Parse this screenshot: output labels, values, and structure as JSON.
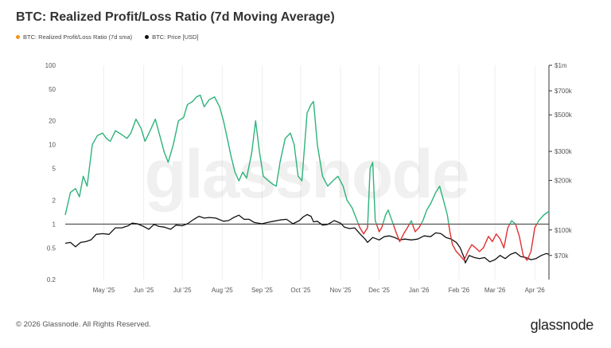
{
  "title": "BTC: Realized Profit/Loss Ratio (7d Moving Average)",
  "legend": [
    {
      "label": "BTC: Realized Profit/Loss Ratio (7d sma)",
      "color": "#f7931a"
    },
    {
      "label": "BTC: Price [USD]",
      "color": "#111111"
    }
  ],
  "watermark": "glassnode",
  "footer": {
    "copyright": "© 2026 Glassnode. All Rights Reserved.",
    "logo": "glassnode"
  },
  "colors": {
    "profit": "#2db37a",
    "loss": "#e03131",
    "price": "#111111",
    "grid": "#eeeeee",
    "axis": "#333333"
  },
  "chart_data": {
    "type": "line",
    "y_scale": "log",
    "grid": "vertical",
    "legend_position": "top-left",
    "x": {
      "start": "2025-04-01",
      "end": "2026-04-12",
      "tick_labels": [
        "May '25",
        "Jun '25",
        "Jul '25",
        "Aug '25",
        "Sep '25",
        "Oct '25",
        "Nov '25",
        "Dec '25",
        "Jan '26",
        "Feb '26",
        "Mar '26",
        "Apr '26"
      ],
      "tick_dates": [
        "2025-05-01",
        "2025-06-01",
        "2025-07-01",
        "2025-08-01",
        "2025-09-01",
        "2025-10-01",
        "2025-11-01",
        "2025-12-01",
        "2026-01-01",
        "2026-02-01",
        "2026-03-01",
        "2026-04-01"
      ]
    },
    "y_left": {
      "range": [
        0.2,
        100
      ],
      "tick_values": [
        100,
        50,
        20,
        10,
        5,
        2,
        1,
        0.5,
        0.2
      ],
      "tick_labels": [
        "100",
        "50",
        "20",
        "10",
        "5",
        "2",
        "1",
        "0.5",
        "0.2"
      ]
    },
    "y_right": {
      "range": [
        50000,
        1000000
      ],
      "tick_values": [
        1000000,
        700000,
        500000,
        300000,
        200000,
        100000,
        70000
      ],
      "tick_labels": [
        "$1m",
        "$700k",
        "$500k",
        "$300k",
        "$200k",
        "$100k",
        "$70k"
      ]
    },
    "reference_line": 1,
    "series": [
      {
        "name": "BTC: Realized Profit/Loss Ratio (7d sma)",
        "axis": "left",
        "style": "colored by threshold 1 (above: profit color, below: loss color)",
        "points": [
          [
            "2025-04-01",
            1.3
          ],
          [
            "2025-04-05",
            2.5
          ],
          [
            "2025-04-09",
            2.8
          ],
          [
            "2025-04-12",
            2.2
          ],
          [
            "2025-04-15",
            4
          ],
          [
            "2025-04-18",
            3
          ],
          [
            "2025-04-22",
            10
          ],
          [
            "2025-04-26",
            13
          ],
          [
            "2025-04-30",
            14
          ],
          [
            "2025-05-03",
            12
          ],
          [
            "2025-05-06",
            11
          ],
          [
            "2025-05-10",
            15
          ],
          [
            "2025-05-13",
            14
          ],
          [
            "2025-05-16",
            13
          ],
          [
            "2025-05-19",
            12
          ],
          [
            "2025-05-22",
            14
          ],
          [
            "2025-05-26",
            21
          ],
          [
            "2025-05-30",
            16
          ],
          [
            "2025-06-02",
            11
          ],
          [
            "2025-06-06",
            15
          ],
          [
            "2025-06-10",
            21
          ],
          [
            "2025-06-13",
            14
          ],
          [
            "2025-06-17",
            8
          ],
          [
            "2025-06-20",
            6
          ],
          [
            "2025-06-24",
            10
          ],
          [
            "2025-06-28",
            20
          ],
          [
            "2025-07-02",
            22
          ],
          [
            "2025-07-05",
            32
          ],
          [
            "2025-07-09",
            35
          ],
          [
            "2025-07-12",
            40
          ],
          [
            "2025-07-15",
            42
          ],
          [
            "2025-07-18",
            30
          ],
          [
            "2025-07-22",
            37
          ],
          [
            "2025-07-26",
            40
          ],
          [
            "2025-07-30",
            30
          ],
          [
            "2025-08-02",
            20
          ],
          [
            "2025-08-05",
            12
          ],
          [
            "2025-08-08",
            7
          ],
          [
            "2025-08-11",
            4.5
          ],
          [
            "2025-08-14",
            3.5
          ],
          [
            "2025-08-17",
            4.5
          ],
          [
            "2025-08-20",
            3.8
          ],
          [
            "2025-08-24",
            8
          ],
          [
            "2025-08-27",
            20
          ],
          [
            "2025-08-30",
            8
          ],
          [
            "2025-09-02",
            4
          ],
          [
            "2025-09-06",
            3.5
          ],
          [
            "2025-09-09",
            3.2
          ],
          [
            "2025-09-12",
            3
          ],
          [
            "2025-09-15",
            6
          ],
          [
            "2025-09-19",
            12
          ],
          [
            "2025-09-23",
            14
          ],
          [
            "2025-09-26",
            10
          ],
          [
            "2025-09-29",
            4
          ],
          [
            "2025-10-02",
            3.5
          ],
          [
            "2025-10-06",
            25
          ],
          [
            "2025-10-09",
            32
          ],
          [
            "2025-10-11",
            35
          ],
          [
            "2025-10-14",
            10
          ],
          [
            "2025-10-18",
            4
          ],
          [
            "2025-10-22",
            3
          ],
          [
            "2025-10-26",
            3.5
          ],
          [
            "2025-10-30",
            4
          ],
          [
            "2025-11-03",
            3
          ],
          [
            "2025-11-06",
            2
          ],
          [
            "2025-11-10",
            1.6
          ],
          [
            "2025-11-13",
            1.2
          ],
          [
            "2025-11-16",
            0.9
          ],
          [
            "2025-11-19",
            0.75
          ],
          [
            "2025-11-22",
            0.9
          ],
          [
            "2025-11-24",
            5
          ],
          [
            "2025-11-26",
            6
          ],
          [
            "2025-11-28",
            1.1
          ],
          [
            "2025-12-01",
            0.8
          ],
          [
            "2025-12-03",
            0.9
          ],
          [
            "2025-12-06",
            1.3
          ],
          [
            "2025-12-08",
            1.5
          ],
          [
            "2025-12-11",
            1.1
          ],
          [
            "2025-12-14",
            0.8
          ],
          [
            "2025-12-17",
            0.6
          ],
          [
            "2025-12-20",
            0.75
          ],
          [
            "2025-12-23",
            0.9
          ],
          [
            "2025-12-26",
            1.1
          ],
          [
            "2025-12-29",
            0.8
          ],
          [
            "2026-01-01",
            0.9
          ],
          [
            "2026-01-04",
            1.1
          ],
          [
            "2026-01-07",
            1.5
          ],
          [
            "2026-01-10",
            1.8
          ],
          [
            "2026-01-14",
            2.5
          ],
          [
            "2026-01-17",
            3
          ],
          [
            "2026-01-20",
            2
          ],
          [
            "2026-01-23",
            1.3
          ],
          [
            "2026-01-25",
            0.8
          ],
          [
            "2026-01-27",
            0.55
          ],
          [
            "2026-01-30",
            0.45
          ],
          [
            "2026-02-02",
            0.4
          ],
          [
            "2026-02-05",
            0.35
          ],
          [
            "2026-02-08",
            0.45
          ],
          [
            "2026-02-11",
            0.55
          ],
          [
            "2026-02-14",
            0.5
          ],
          [
            "2026-02-17",
            0.45
          ],
          [
            "2026-02-20",
            0.5
          ],
          [
            "2026-02-24",
            0.7
          ],
          [
            "2026-02-27",
            0.6
          ],
          [
            "2026-03-02",
            0.75
          ],
          [
            "2026-03-05",
            0.65
          ],
          [
            "2026-03-08",
            0.5
          ],
          [
            "2026-03-11",
            0.9
          ],
          [
            "2026-03-14",
            1.1
          ],
          [
            "2026-03-17",
            1
          ],
          [
            "2026-03-20",
            0.7
          ],
          [
            "2026-03-23",
            0.4
          ],
          [
            "2026-03-26",
            0.35
          ],
          [
            "2026-03-29",
            0.45
          ],
          [
            "2026-04-01",
            0.9
          ],
          [
            "2026-04-04",
            1.1
          ],
          [
            "2026-04-08",
            1.3
          ],
          [
            "2026-04-12",
            1.45
          ]
        ]
      },
      {
        "name": "BTC: Price [USD]",
        "axis": "right",
        "points": [
          [
            "2025-04-01",
            83000
          ],
          [
            "2025-04-05",
            84000
          ],
          [
            "2025-04-09",
            79000
          ],
          [
            "2025-04-13",
            84000
          ],
          [
            "2025-04-17",
            85000
          ],
          [
            "2025-04-21",
            87000
          ],
          [
            "2025-04-25",
            94000
          ],
          [
            "2025-04-30",
            95000
          ],
          [
            "2025-05-05",
            94000
          ],
          [
            "2025-05-10",
            103000
          ],
          [
            "2025-05-15",
            103000
          ],
          [
            "2025-05-20",
            106000
          ],
          [
            "2025-05-23",
            110000
          ],
          [
            "2025-05-27",
            109000
          ],
          [
            "2025-06-01",
            105000
          ],
          [
            "2025-06-05",
            101000
          ],
          [
            "2025-06-09",
            108000
          ],
          [
            "2025-06-13",
            105000
          ],
          [
            "2025-06-17",
            104000
          ],
          [
            "2025-06-22",
            101000
          ],
          [
            "2025-06-26",
            107000
          ],
          [
            "2025-07-01",
            106000
          ],
          [
            "2025-07-05",
            109000
          ],
          [
            "2025-07-10",
            116000
          ],
          [
            "2025-07-14",
            121000
          ],
          [
            "2025-07-18",
            118000
          ],
          [
            "2025-07-22",
            119000
          ],
          [
            "2025-07-27",
            118000
          ],
          [
            "2025-08-02",
            113000
          ],
          [
            "2025-08-06",
            114000
          ],
          [
            "2025-08-10",
            119000
          ],
          [
            "2025-08-14",
            123000
          ],
          [
            "2025-08-18",
            116000
          ],
          [
            "2025-08-22",
            116000
          ],
          [
            "2025-08-26",
            111000
          ],
          [
            "2025-09-01",
            109000
          ],
          [
            "2025-09-05",
            111000
          ],
          [
            "2025-09-10",
            113000
          ],
          [
            "2025-09-15",
            115000
          ],
          [
            "2025-09-20",
            116000
          ],
          [
            "2025-09-25",
            109000
          ],
          [
            "2025-09-30",
            114000
          ],
          [
            "2025-10-03",
            120000
          ],
          [
            "2025-10-06",
            124000
          ],
          [
            "2025-10-09",
            121000
          ],
          [
            "2025-10-11",
            112000
          ],
          [
            "2025-10-14",
            113000
          ],
          [
            "2025-10-18",
            107000
          ],
          [
            "2025-10-22",
            108000
          ],
          [
            "2025-10-27",
            114000
          ],
          [
            "2025-11-01",
            110000
          ],
          [
            "2025-11-04",
            104000
          ],
          [
            "2025-11-08",
            102000
          ],
          [
            "2025-11-12",
            103000
          ],
          [
            "2025-11-16",
            95000
          ],
          [
            "2025-11-20",
            88000
          ],
          [
            "2025-11-22",
            84000
          ],
          [
            "2025-11-26",
            90000
          ],
          [
            "2025-12-01",
            87000
          ],
          [
            "2025-12-05",
            91000
          ],
          [
            "2025-12-09",
            92000
          ],
          [
            "2025-12-13",
            90000
          ],
          [
            "2025-12-17",
            87000
          ],
          [
            "2025-12-21",
            88000
          ],
          [
            "2025-12-26",
            87000
          ],
          [
            "2025-12-31",
            88000
          ],
          [
            "2026-01-05",
            92000
          ],
          [
            "2026-01-10",
            91000
          ],
          [
            "2026-01-14",
            96000
          ],
          [
            "2026-01-18",
            95000
          ],
          [
            "2026-01-22",
            90000
          ],
          [
            "2026-01-26",
            88000
          ],
          [
            "2026-01-30",
            84000
          ],
          [
            "2026-02-02",
            78000
          ],
          [
            "2026-02-05",
            68000
          ],
          [
            "2026-02-06",
            63000
          ],
          [
            "2026-02-09",
            70000
          ],
          [
            "2026-02-13",
            68000
          ],
          [
            "2026-02-17",
            67000
          ],
          [
            "2026-02-21",
            68000
          ],
          [
            "2026-02-25",
            64000
          ],
          [
            "2026-03-01",
            66000
          ],
          [
            "2026-03-05",
            70000
          ],
          [
            "2026-03-09",
            67000
          ],
          [
            "2026-03-13",
            71000
          ],
          [
            "2026-03-17",
            73000
          ],
          [
            "2026-03-21",
            69000
          ],
          [
            "2026-03-25",
            68000
          ],
          [
            "2026-03-29",
            66000
          ],
          [
            "2026-04-02",
            67000
          ],
          [
            "2026-04-06",
            70000
          ],
          [
            "2026-04-10",
            72000
          ],
          [
            "2026-04-12",
            71000
          ]
        ]
      }
    ]
  }
}
